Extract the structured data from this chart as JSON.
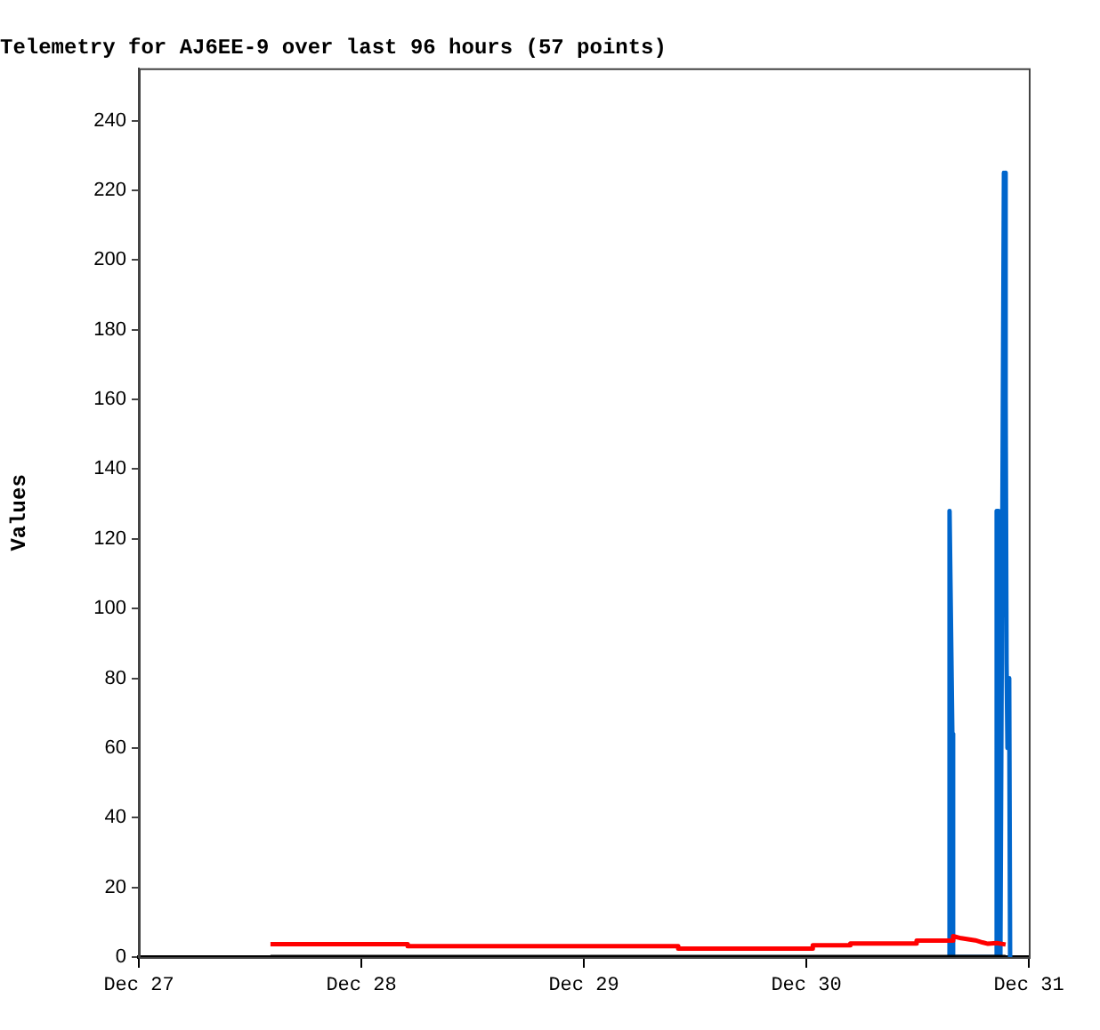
{
  "chart_data": {
    "type": "line",
    "title": "Telemetry for AJ6EE-9 over last 96 hours (57 points)",
    "ylabel": "Values",
    "xlim": [
      "--12-27",
      "--12-31"
    ],
    "xticks": [
      {
        "value": "--12-27",
        "label": "Dec 27"
      },
      {
        "value": "--12-28",
        "label": "Dec 28"
      },
      {
        "value": "--12-29",
        "label": "Dec 29"
      },
      {
        "value": "--12-30",
        "label": "Dec 30"
      },
      {
        "value": "--12-31",
        "label": "Dec 31"
      }
    ],
    "ylim": [
      0,
      255
    ],
    "yticks": [
      0,
      20,
      40,
      60,
      80,
      100,
      120,
      140,
      160,
      180,
      200,
      220,
      240
    ],
    "grid": false,
    "legend": false,
    "marker": "none",
    "line_style": "solid",
    "series": [
      {
        "color": "#ff0000",
        "x": [
          "--12-27T14:12",
          "--12-28T05:00",
          "--12-28T05:00",
          "--12-29T10:11",
          "--12-29T10:11",
          "--12-30T00:42",
          "--12-30T00:42",
          "--12-30T04:45",
          "--12-30T04:45",
          "--12-30T11:54",
          "--12-30T11:54",
          "--12-30T15:45",
          "--12-30T15:50",
          "--12-30T16:42",
          "--12-30T18:14",
          "--12-30T19:00",
          "--12-30T19:36",
          "--12-30T20:32",
          "--12-30T21:30"
        ],
        "values": [
          3.7,
          3.7,
          3.1,
          3.1,
          2.4,
          2.4,
          3.4,
          3.4,
          3.9,
          3.9,
          4.7,
          4.7,
          6.0,
          5.4,
          4.8,
          4.2,
          3.8,
          4.0,
          3.6
        ]
      },
      {
        "color": "#000000",
        "x": [
          "--12-27T14:12",
          "--12-30T21:30"
        ],
        "values": [
          0,
          0
        ]
      },
      {
        "color": "#0066cc",
        "x": [
          "--12-30T15:22",
          "--12-30T15:27",
          "--12-30T15:45",
          "--12-30T15:50",
          "--12-30T20:27",
          "--12-30T20:32",
          "--12-30T20:44",
          "--12-30T20:50",
          "--12-30T20:56",
          "--12-30T21:19",
          "--12-30T21:30",
          "--12-30T21:36",
          "--12-30T21:42",
          "--12-30T21:53",
          "--12-30T21:59"
        ],
        "values": [
          0,
          128,
          64,
          0,
          0,
          128,
          128,
          36,
          0,
          225,
          160,
          84,
          60,
          80,
          0
        ]
      }
    ]
  }
}
